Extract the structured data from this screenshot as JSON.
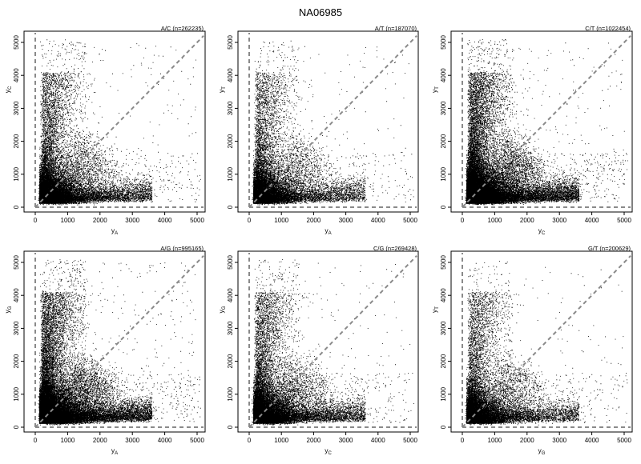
{
  "figure": {
    "title": "NA06985"
  },
  "chart_data": [
    {
      "type": "scatter",
      "title": "A/C (n=262235)",
      "xlabel": "y_A",
      "ylabel": "y_C",
      "xvar": "y",
      "xsub": "A",
      "yvar": "y",
      "ysub": "C",
      "xlim": [
        0,
        5000
      ],
      "ylim": [
        0,
        5000
      ],
      "xticks": [
        0,
        1000,
        2000,
        3000,
        4000,
        5000
      ],
      "yticks": [
        0,
        1000,
        2000,
        3000,
        4000,
        5000
      ],
      "reference_lines": [
        "y = x",
        "x = 0",
        "y = 0"
      ],
      "density": 1.0
    },
    {
      "type": "scatter",
      "title": "A/T (n=187070)",
      "xlabel": "y_A",
      "ylabel": "y_T",
      "xvar": "y",
      "xsub": "A",
      "yvar": "y",
      "ysub": "T",
      "xlim": [
        0,
        5000
      ],
      "ylim": [
        0,
        5000
      ],
      "xticks": [
        0,
        1000,
        2000,
        3000,
        4000,
        5000
      ],
      "yticks": [
        0,
        1000,
        2000,
        3000,
        4000,
        5000
      ],
      "reference_lines": [
        "y = x",
        "x = 0",
        "y = 0"
      ],
      "density": 0.8
    },
    {
      "type": "scatter",
      "title": "C/T (n=1022454)",
      "xlabel": "y_C",
      "ylabel": "y_T",
      "xvar": "y",
      "xsub": "C",
      "yvar": "y",
      "ysub": "T",
      "xlim": [
        0,
        5000
      ],
      "ylim": [
        0,
        5000
      ],
      "xticks": [
        0,
        1000,
        2000,
        3000,
        4000,
        5000
      ],
      "yticks": [
        0,
        1000,
        2000,
        3000,
        4000,
        5000
      ],
      "reference_lines": [
        "y = x",
        "x = 0",
        "y = 0"
      ],
      "density": 1.6
    },
    {
      "type": "scatter",
      "title": "A/G (n=995165)",
      "xlabel": "y_A",
      "ylabel": "y_G",
      "xvar": "y",
      "xsub": "A",
      "yvar": "y",
      "ysub": "G",
      "xlim": [
        0,
        5000
      ],
      "ylim": [
        0,
        5000
      ],
      "xticks": [
        0,
        1000,
        2000,
        3000,
        4000,
        5000
      ],
      "yticks": [
        0,
        1000,
        2000,
        3000,
        4000,
        5000
      ],
      "reference_lines": [
        "y = x",
        "x = 0",
        "y = 0"
      ],
      "density": 1.6
    },
    {
      "type": "scatter",
      "title": "C/G (n=269428)",
      "xlabel": "y_C",
      "ylabel": "y_G",
      "xvar": "y",
      "xsub": "C",
      "yvar": "y",
      "ysub": "G",
      "xlim": [
        0,
        5000
      ],
      "ylim": [
        0,
        5000
      ],
      "xticks": [
        0,
        1000,
        2000,
        3000,
        4000,
        5000
      ],
      "yticks": [
        0,
        1000,
        2000,
        3000,
        4000,
        5000
      ],
      "reference_lines": [
        "y = x",
        "x = 0",
        "y = 0"
      ],
      "density": 1.0
    },
    {
      "type": "scatter",
      "title": "G/T (n=200629)",
      "xlabel": "y_G",
      "ylabel": "y_T",
      "xvar": "y",
      "xsub": "G",
      "yvar": "y",
      "ysub": "T",
      "xlim": [
        0,
        5000
      ],
      "ylim": [
        0,
        5000
      ],
      "xticks": [
        0,
        1000,
        2000,
        3000,
        4000,
        5000
      ],
      "yticks": [
        0,
        1000,
        2000,
        3000,
        4000,
        5000
      ],
      "reference_lines": [
        "y = x",
        "x = 0",
        "y = 0"
      ],
      "density": 0.8
    }
  ]
}
